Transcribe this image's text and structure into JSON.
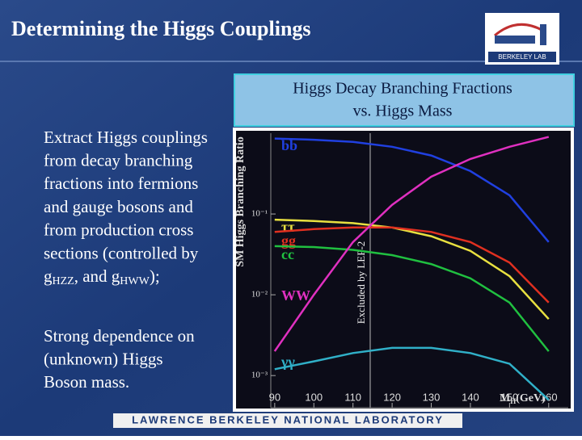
{
  "header": {
    "title": "Determining the Higgs Couplings",
    "logo_text": "BERKELEY LAB"
  },
  "body": {
    "paragraphs": [
      {
        "lines": [
          "Extract Higgs couplings",
          "from decay branching",
          "fractions into fermions",
          "and gauge bosons and",
          "from production cross",
          "sections (controlled by"
        ],
        "last": [
          {
            "text": "g"
          },
          {
            "sub": "HZZ"
          },
          {
            "text": ", and g"
          },
          {
            "sub": "HWW"
          },
          {
            "text": ");"
          }
        ]
      },
      {
        "lines": [
          "Strong dependence on",
          "(unknown) Higgs",
          "Boson mass."
        ]
      }
    ]
  },
  "figure": {
    "caption": [
      "Higgs Decay Branching Fractions",
      "vs. Higgs Mass"
    ]
  },
  "chart_data": {
    "type": "line",
    "ylabel": "SM Higgs Branching Ratio",
    "xlabel": {
      "main": "M",
      "sub": "H",
      "unit": "(GeV)"
    },
    "x": [
      90,
      100,
      110,
      120,
      130,
      140,
      150,
      160
    ],
    "series": [
      {
        "name": "bb",
        "color": "#2040e0",
        "values": [
          0.86,
          0.83,
          0.78,
          0.68,
          0.53,
          0.34,
          0.17,
          0.045
        ]
      },
      {
        "name": "ττ",
        "color": "#e8e040",
        "values": [
          0.085,
          0.082,
          0.077,
          0.068,
          0.053,
          0.035,
          0.017,
          0.005
        ]
      },
      {
        "name": "gg",
        "color": "#e03020",
        "values": [
          0.06,
          0.065,
          0.068,
          0.068,
          0.06,
          0.045,
          0.025,
          0.008
        ]
      },
      {
        "name": "cc",
        "color": "#20c040",
        "values": [
          0.04,
          0.039,
          0.036,
          0.031,
          0.024,
          0.016,
          0.008,
          0.002
        ]
      },
      {
        "name": "WW",
        "color": "#e030c0",
        "values": [
          0.002,
          0.01,
          0.045,
          0.13,
          0.29,
          0.48,
          0.68,
          0.9
        ]
      },
      {
        "name": "γγ",
        "color": "#30b0c8",
        "values": [
          0.0012,
          0.0015,
          0.0019,
          0.0022,
          0.0022,
          0.0019,
          0.0014,
          0.0005
        ]
      }
    ],
    "xlim": [
      89,
      165
    ],
    "xticks": [
      90,
      100,
      110,
      120,
      130,
      140,
      150,
      160
    ],
    "ylim": [
      0.0004,
      1
    ],
    "log_y": true,
    "yticks": [
      {
        "value": 0.1,
        "label": "10⁻¹"
      },
      {
        "value": 0.01,
        "label": "10⁻²"
      },
      {
        "value": 0.001,
        "label": "10⁻³"
      }
    ],
    "exclusion": {
      "label": "Excluded by LEP-2",
      "x": 114.4
    },
    "grid": false
  },
  "footer": {
    "text": "LAWRENCE BERKELEY NATIONAL LABORATORY"
  }
}
